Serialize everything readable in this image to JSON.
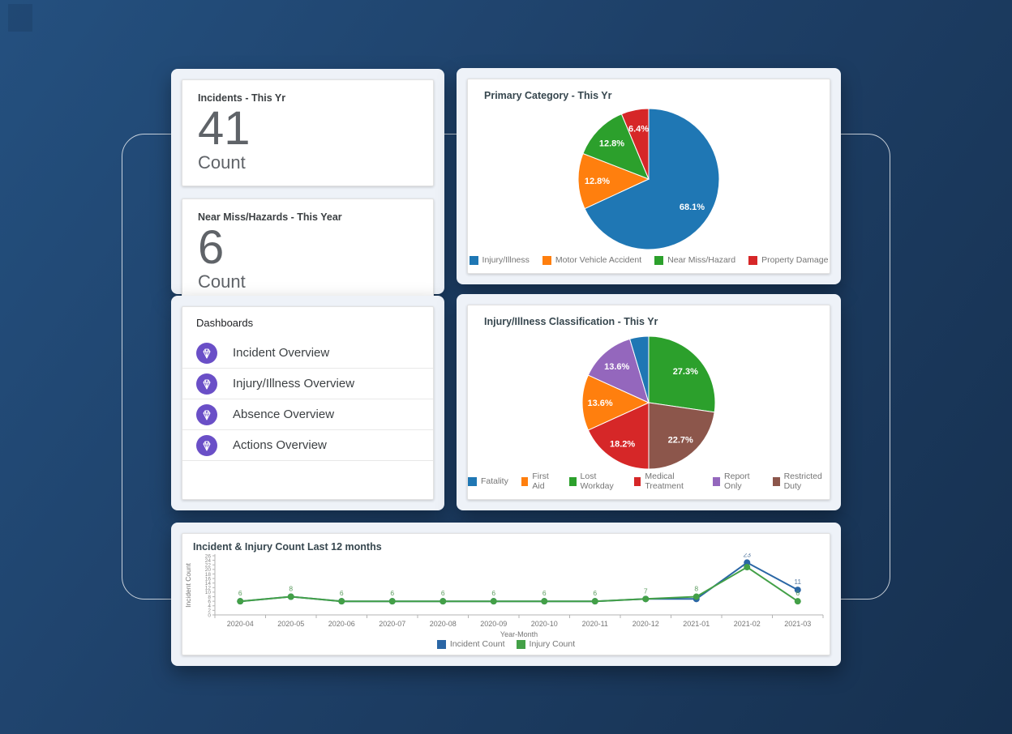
{
  "kpi_cards": [
    {
      "title": "Incidents - This Yr",
      "value": "41",
      "unit": "Count"
    },
    {
      "title": "Near Miss/Hazards - This Year",
      "value": "6",
      "unit": "Count"
    }
  ],
  "dashboards_card": {
    "title": "Dashboards",
    "icon": "gem-icon",
    "icon_color": "#6a4fc7",
    "items": [
      {
        "label": "Incident Overview"
      },
      {
        "label": "Injury/Illness Overview"
      },
      {
        "label": "Absence Overview"
      },
      {
        "label": "Actions Overview"
      }
    ]
  },
  "chart_data": [
    {
      "type": "pie",
      "title": "Primary Category - This Yr",
      "start_angle_deg": 0,
      "direction": "clockwise",
      "legend_position": "bottom",
      "slices": [
        {
          "name": "Injury/Illness",
          "pct": 68.1,
          "label": "68.1%",
          "color": "#1f77b4"
        },
        {
          "name": "Motor Vehicle Accident",
          "pct": 12.8,
          "label": "12.8%",
          "color": "#ff7f0e"
        },
        {
          "name": "Near Miss/Hazard",
          "pct": 12.8,
          "label": "12.8%",
          "color": "#2ca02c"
        },
        {
          "name": "Property Damage",
          "pct": 6.4,
          "label": "6.4%",
          "color": "#d62728"
        }
      ],
      "legend": [
        {
          "label": "Injury/Illness",
          "color": "#1f77b4"
        },
        {
          "label": "Motor Vehicle Accident",
          "color": "#ff7f0e"
        },
        {
          "label": "Near Miss/Hazard",
          "color": "#2ca02c"
        },
        {
          "label": "Property Damage",
          "color": "#d62728"
        }
      ]
    },
    {
      "type": "pie",
      "title": "Injury/Illness Classification - This Yr",
      "start_angle_deg": 0,
      "direction": "clockwise",
      "legend_position": "bottom",
      "slices": [
        {
          "name": "Lost Workday",
          "pct": 27.3,
          "label": "27.3%",
          "color": "#2ca02c"
        },
        {
          "name": "Restricted Duty",
          "pct": 22.7,
          "label": "22.7%",
          "color": "#8c564b"
        },
        {
          "name": "Medical Treatment",
          "pct": 18.2,
          "label": "18.2%",
          "color": "#d62728"
        },
        {
          "name": "First Aid",
          "pct": 13.6,
          "label": "13.6%",
          "color": "#ff7f0e"
        },
        {
          "name": "Report Only",
          "pct": 13.6,
          "label": "13.6%",
          "color": "#9467bd"
        },
        {
          "name": "Fatality",
          "pct": 4.6,
          "label": "",
          "color": "#1f77b4"
        }
      ],
      "legend": [
        {
          "label": "Fatality",
          "color": "#1f77b4"
        },
        {
          "label": "First Aid",
          "color": "#ff7f0e"
        },
        {
          "label": "Lost Workday",
          "color": "#2ca02c"
        },
        {
          "label": "Medical Treatment",
          "color": "#d62728"
        },
        {
          "label": "Report Only",
          "color": "#9467bd"
        },
        {
          "label": "Restricted Duty",
          "color": "#8c564b"
        }
      ]
    },
    {
      "type": "line",
      "title": "Incident & Injury Count Last 12 months",
      "xlabel": "Year-Month",
      "ylabel": "Incident Count",
      "ylim": [
        0,
        26
      ],
      "ytick_step": 2,
      "grid": false,
      "legend_position": "bottom",
      "categories": [
        "2020-04",
        "2020-05",
        "2020-06",
        "2020-07",
        "2020-08",
        "2020-09",
        "2020-10",
        "2020-11",
        "2020-12",
        "2021-01",
        "2021-02",
        "2021-03"
      ],
      "series": [
        {
          "name": "Incident Count",
          "color": "#2a66a5",
          "label_color": "#5b7da3",
          "values": [
            6,
            8,
            6,
            6,
            6,
            6,
            6,
            6,
            7,
            7,
            23,
            11
          ],
          "labels": [
            null,
            null,
            null,
            null,
            null,
            null,
            null,
            null,
            null,
            null,
            "23",
            "11"
          ]
        },
        {
          "name": "Injury Count",
          "color": "#43a047",
          "label_color": "#5d9c60",
          "values": [
            6,
            8,
            6,
            6,
            6,
            6,
            6,
            6,
            7,
            8,
            21,
            6
          ],
          "labels": [
            "6",
            "8",
            "6",
            "6",
            "6",
            "6",
            "6",
            "6",
            "7",
            "8",
            null,
            "6"
          ]
        }
      ]
    }
  ]
}
